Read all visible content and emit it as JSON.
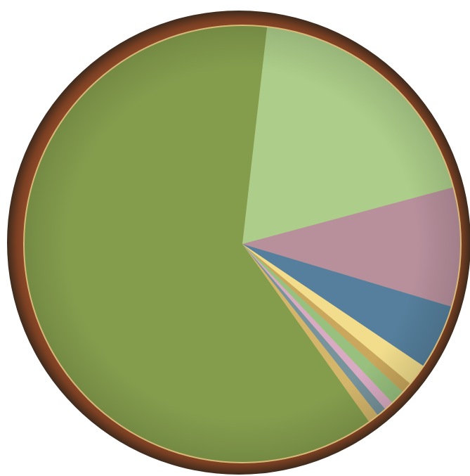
{
  "chart_data": {
    "type": "pie",
    "values": [
      19,
      8.8,
      4.8,
      1.6,
      0.8,
      1.1,
      0.7,
      0.7,
      0.8,
      61.6
    ],
    "colors": [
      "#a9cf8c",
      "#b48ca0",
      "#4a7aa0",
      "#f3e08e",
      "#c8a55a",
      "#92c07f",
      "#d9a9c9",
      "#6f8fa0",
      "#d4b56a",
      "#7d9a4a"
    ]
  }
}
